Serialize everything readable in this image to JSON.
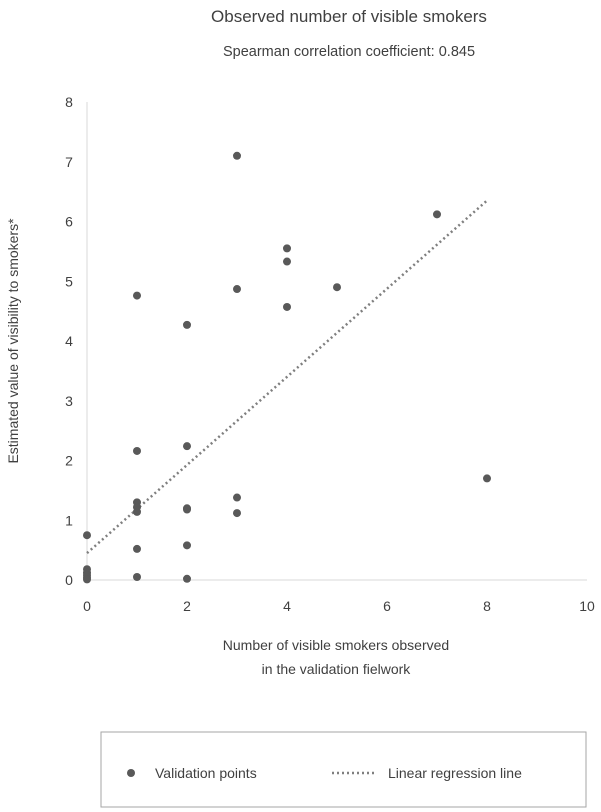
{
  "chart_data": {
    "type": "scatter",
    "title": "Observed number of visible smokers",
    "subtitle": "Spearman correlation coefficient: 0.845",
    "xlabel_lines": [
      "Number of visible smokers observed",
      "in the validation fielwork"
    ],
    "ylabel": "Estimated value of visibility to smokers*",
    "xlim": [
      0,
      10
    ],
    "ylim": [
      0,
      8
    ],
    "x_ticks": [
      "0",
      "2",
      "4",
      "6",
      "8",
      "10"
    ],
    "y_ticks": [
      "0",
      "1",
      "2",
      "3",
      "4",
      "5",
      "6",
      "7",
      "8"
    ],
    "grid": false,
    "legend_position": "bottom",
    "series": [
      {
        "name": "Validation points",
        "kind": "points",
        "color": "#595959",
        "points": [
          [
            0,
            0.75
          ],
          [
            0,
            0.18
          ],
          [
            0,
            0.12
          ],
          [
            0,
            0.08
          ],
          [
            0,
            0.04
          ],
          [
            0,
            0.01
          ],
          [
            1,
            4.76
          ],
          [
            1,
            2.16
          ],
          [
            1,
            1.3
          ],
          [
            1,
            1.22
          ],
          [
            1,
            1.14
          ],
          [
            1,
            0.52
          ],
          [
            1,
            0.05
          ],
          [
            2,
            4.27
          ],
          [
            2,
            2.24
          ],
          [
            2,
            1.2
          ],
          [
            2,
            1.18
          ],
          [
            2,
            0.58
          ],
          [
            2,
            0.02
          ],
          [
            3,
            7.1
          ],
          [
            3,
            4.87
          ],
          [
            3,
            1.38
          ],
          [
            3,
            1.12
          ],
          [
            4,
            5.55
          ],
          [
            4,
            5.33
          ],
          [
            4,
            4.57
          ],
          [
            5,
            4.9
          ],
          [
            7,
            6.12
          ],
          [
            8,
            1.7
          ]
        ]
      },
      {
        "name": "Linear regression line",
        "kind": "trendline",
        "color": "#7f7f7f",
        "line": [
          [
            0,
            0.45
          ],
          [
            8,
            6.35
          ]
        ]
      }
    ]
  }
}
